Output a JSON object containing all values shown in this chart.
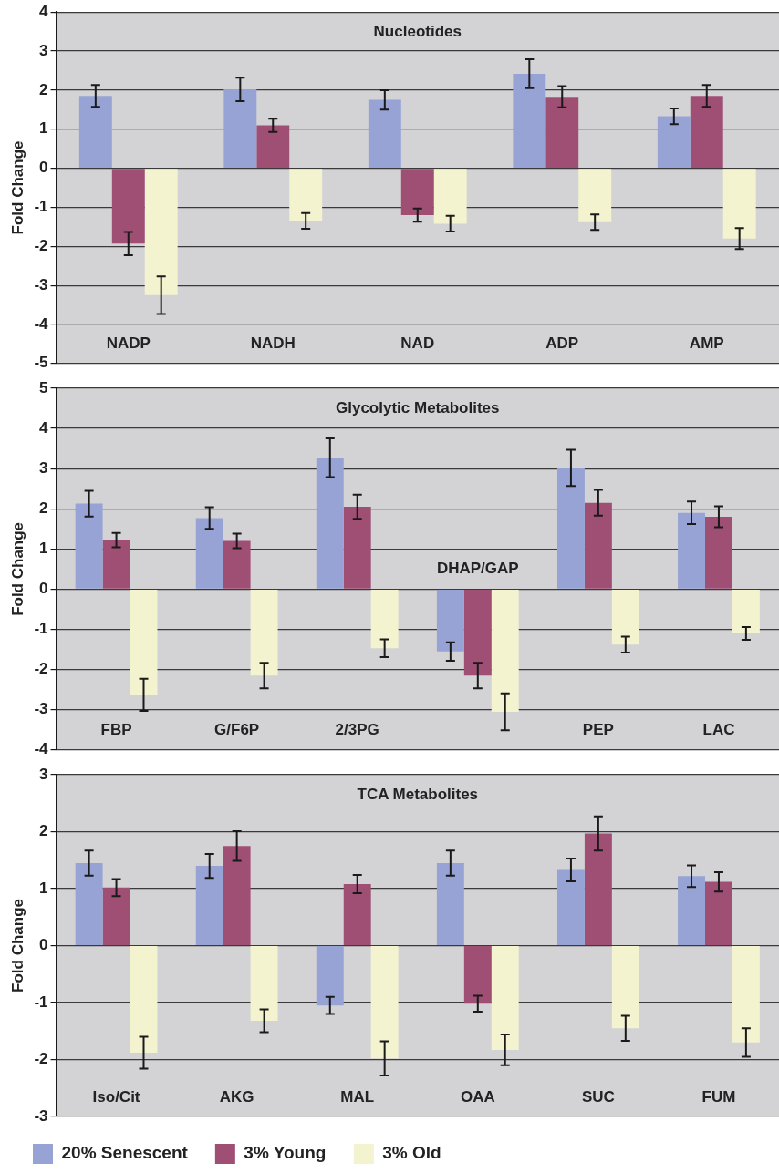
{
  "chart_data": [
    {
      "type": "bar",
      "title": "Nucleotides",
      "ylabel": "Fold Change",
      "categories": [
        "NADP",
        "NADH",
        "NAD",
        "ADP",
        "AMP"
      ],
      "series": [
        {
          "color": "#97a3d4",
          "values": [
            1.85,
            2.02,
            1.75,
            2.42,
            1.33
          ],
          "errors": [
            0.28,
            0.3,
            0.25,
            0.37,
            0.2
          ]
        },
        {
          "color": "#a04f74",
          "values": [
            -1.93,
            1.1,
            -1.2,
            1.83,
            1.85
          ],
          "errors": [
            0.3,
            0.17,
            0.17,
            0.27,
            0.28
          ]
        },
        {
          "color": "#f4f3cf",
          "values": [
            -3.25,
            -1.35,
            -1.42,
            -1.38,
            -1.8
          ],
          "errors": [
            0.48,
            0.2,
            0.2,
            0.2,
            0.27
          ]
        }
      ],
      "ylim": [
        -5,
        4
      ],
      "yticks": [
        -5,
        -4,
        -3,
        -2,
        -1,
        0,
        1,
        2,
        3,
        4
      ],
      "grid": "y",
      "legend": false
    },
    {
      "type": "bar",
      "title": "Glycolytic Metabolites",
      "ylabel": "Fold Change",
      "categories": [
        "FBP",
        "G/F6P",
        "2/3PG",
        "DHAP/GAP",
        "PEP",
        "LAC"
      ],
      "series": [
        {
          "color": "#97a3d4",
          "values": [
            2.13,
            1.77,
            3.27,
            -1.55,
            3.02,
            1.9
          ],
          "errors": [
            0.32,
            0.27,
            0.48,
            0.23,
            0.45,
            0.28
          ]
        },
        {
          "color": "#a04f74",
          "values": [
            1.22,
            1.2,
            2.05,
            -2.15,
            2.15,
            1.8
          ],
          "errors": [
            0.18,
            0.18,
            0.3,
            0.32,
            0.32,
            0.26
          ]
        },
        {
          "color": "#f4f3cf",
          "values": [
            -2.63,
            -2.15,
            -1.47,
            -3.05,
            -1.38,
            -1.1
          ],
          "errors": [
            0.4,
            0.32,
            0.22,
            0.46,
            0.2,
            0.16
          ]
        }
      ],
      "ylim": [
        -4,
        5
      ],
      "yticks": [
        -4,
        -3,
        -2,
        -1,
        0,
        1,
        2,
        3,
        4,
        5
      ],
      "grid": "y",
      "legend": false
    },
    {
      "type": "bar",
      "title": "TCA Metabolites",
      "ylabel": "Fold Change",
      "categories": [
        "Iso/Cit",
        "AKG",
        "MAL",
        "OAA",
        "SUC",
        "FUM"
      ],
      "series": [
        {
          "name": "20% Senescent",
          "color": "#97a3d4",
          "values": [
            1.45,
            1.4,
            -1.05,
            1.45,
            1.33,
            1.22
          ],
          "errors": [
            0.22,
            0.21,
            0.15,
            0.22,
            0.2,
            0.19
          ]
        },
        {
          "name": "3% Young",
          "color": "#a04f74",
          "values": [
            1.02,
            1.75,
            1.08,
            -1.02,
            1.97,
            1.12
          ],
          "errors": [
            0.15,
            0.26,
            0.16,
            0.14,
            0.3,
            0.17
          ]
        },
        {
          "name": "3% Old",
          "color": "#f4f3cf",
          "values": [
            -1.88,
            -1.32,
            -1.98,
            -1.83,
            -1.45,
            -1.7
          ],
          "errors": [
            0.28,
            0.2,
            0.3,
            0.27,
            0.22,
            0.25
          ]
        }
      ],
      "ylim": [
        -3,
        3
      ],
      "yticks": [
        -3,
        -2,
        -1,
        0,
        1,
        2,
        3
      ],
      "grid": "y",
      "legend": "bottom"
    }
  ]
}
